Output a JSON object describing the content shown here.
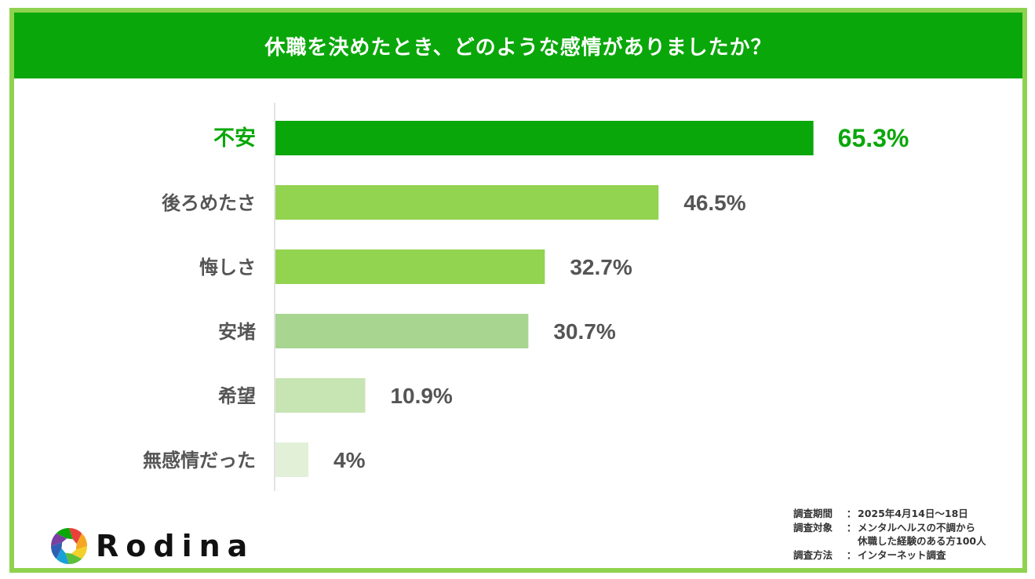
{
  "title": "休職を決めたとき、どのような感情がありましたか？",
  "chart_data": {
    "type": "bar",
    "orientation": "horizontal",
    "categories": [
      "不安",
      "後ろめたさ",
      "悔しさ",
      "安堵",
      "希望",
      "無感情だった"
    ],
    "values": [
      65.3,
      46.5,
      32.7,
      30.7,
      10.9,
      4
    ],
    "value_labels": [
      "65.3%",
      "46.5%",
      "32.7%",
      "30.7%",
      "10.9%",
      "4%"
    ],
    "unit": "%",
    "bar_colors": [
      "#0aa70a",
      "#92d350",
      "#92d350",
      "#a8d590",
      "#c7e4b3",
      "#e2f0d8"
    ],
    "highlight_color": "#0aa70a",
    "label_color": "#555555",
    "grid": false,
    "legend": "none"
  },
  "logo": {
    "text": "Rodina",
    "icon": "aperture-ring-icon",
    "colors": [
      "#e8413c",
      "#f5a623",
      "#f3d02a",
      "#5bbf3a",
      "#1aa0d8",
      "#2f5fb3",
      "#7b3fa0",
      "#0aa70a"
    ]
  },
  "survey_note": {
    "period_label": "調査期間",
    "period_value": "2025年4月14日～18日",
    "target_label": "調査対象",
    "target_value_line1": "メンタルヘルスの不調から",
    "target_value_line2": "休職した経験のある方100人",
    "method_label": "調査方法",
    "method_value": "インターネット調査",
    "separator": "："
  },
  "colors": {
    "header_bg": "#0aa70a",
    "frame_border": "#8fd24f"
  }
}
